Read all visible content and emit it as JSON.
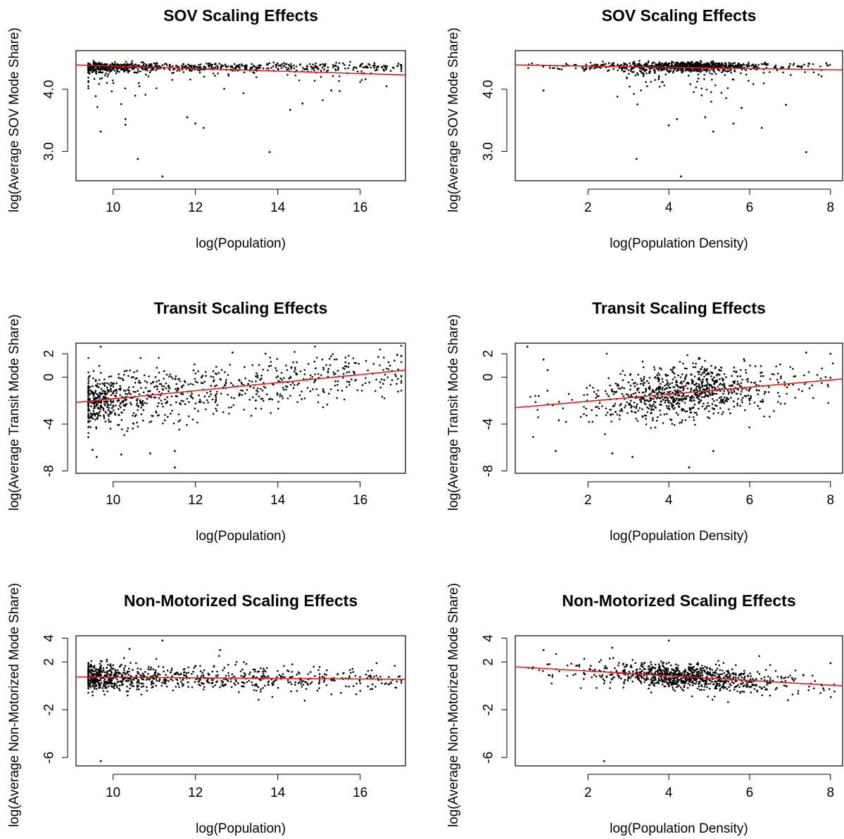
{
  "figure": {
    "point_color": "#000000",
    "fit_line_color": "#e41a1c"
  },
  "chart_data": [
    {
      "type": "scatter",
      "title": "SOV Scaling Effects",
      "xlabel": "log(Population)",
      "ylabel": "log(Average SOV Mode Share)",
      "xlim": [
        9.1,
        17.1
      ],
      "ylim": [
        2.53,
        4.62
      ],
      "xticks": [
        10,
        12,
        14,
        16
      ],
      "yticks": [
        3.0,
        4.0
      ],
      "ytick_labels": [
        "3.0",
        "4.0"
      ],
      "grid": false,
      "fit_line": {
        "x": [
          9.1,
          17.1
        ],
        "y": [
          4.39,
          4.23
        ]
      },
      "points": {
        "count": 900,
        "x_range": [
          9.4,
          17.0
        ],
        "center_y": 4.36,
        "spread_y": 0.09
      },
      "outliers": [
        [
          9.7,
          3.32
        ],
        [
          10.3,
          3.43
        ],
        [
          10.3,
          3.52
        ],
        [
          10.6,
          2.88
        ],
        [
          11.2,
          2.6
        ],
        [
          11.8,
          3.55
        ],
        [
          12.2,
          3.38
        ],
        [
          12.0,
          3.45
        ],
        [
          13.8,
          2.99
        ],
        [
          14.3,
          3.67
        ],
        [
          14.6,
          3.77
        ],
        [
          15.5,
          3.97
        ],
        [
          15.3,
          3.98
        ]
      ]
    },
    {
      "type": "scatter",
      "title": "SOV Scaling Effects",
      "xlabel": "log(Population Density)",
      "ylabel": "log(Average SOV Mode Share)",
      "xlim": [
        0.2,
        8.3
      ],
      "ylim": [
        2.53,
        4.62
      ],
      "xticks": [
        2,
        4,
        6,
        8
      ],
      "yticks": [
        3.0,
        4.0
      ],
      "ytick_labels": [
        "3.0",
        "4.0"
      ],
      "grid": false,
      "fit_line": {
        "x": [
          0.2,
          8.3
        ],
        "y": [
          4.39,
          4.31
        ]
      },
      "points": {
        "count": 900,
        "x_range": [
          0.5,
          8.1
        ],
        "center_y": 4.37,
        "spread_y": 0.08
      },
      "outliers": [
        [
          0.9,
          3.98
        ],
        [
          3.2,
          2.88
        ],
        [
          4.0,
          3.42
        ],
        [
          4.2,
          3.52
        ],
        [
          4.3,
          2.6
        ],
        [
          5.1,
          3.32
        ],
        [
          5.6,
          3.45
        ],
        [
          6.3,
          3.38
        ],
        [
          7.4,
          2.99
        ],
        [
          4.9,
          3.55
        ],
        [
          5.8,
          3.7
        ],
        [
          6.9,
          3.75
        ]
      ]
    },
    {
      "type": "scatter",
      "title": "Transit Scaling Effects",
      "xlabel": "log(Population)",
      "ylabel": "log(Average Transit Mode Share)",
      "xlim": [
        9.1,
        17.1
      ],
      "ylim": [
        -8.2,
        2.9
      ],
      "xticks": [
        10,
        12,
        14,
        16
      ],
      "yticks": [
        -8,
        -4,
        0,
        2
      ],
      "ytick_labels": [
        "-8",
        "-4",
        "0",
        "2"
      ],
      "grid": false,
      "fit_line": {
        "x": [
          9.1,
          17.1
        ],
        "y": [
          -2.15,
          0.6
        ]
      },
      "points": {
        "count": 900,
        "x_range": [
          9.4,
          17.0
        ],
        "center_y": -1.3,
        "spread_y": 1.1
      },
      "outliers": [
        [
          9.5,
          -6.2
        ],
        [
          9.6,
          -6.8
        ],
        [
          10.2,
          -6.6
        ],
        [
          10.9,
          -6.5
        ],
        [
          11.5,
          -6.3
        ],
        [
          11.5,
          -7.7
        ],
        [
          9.7,
          2.6
        ],
        [
          12.9,
          2.1
        ],
        [
          16.9,
          1.9
        ],
        [
          13.7,
          2.0
        ]
      ]
    },
    {
      "type": "scatter",
      "title": "Transit Scaling Effects",
      "xlabel": "log(Population Density)",
      "ylabel": "log(Average Transit Mode Share)",
      "xlim": [
        0.2,
        8.3
      ],
      "ylim": [
        -8.2,
        2.9
      ],
      "xticks": [
        2,
        4,
        6,
        8
      ],
      "yticks": [
        -8,
        -4,
        0,
        2
      ],
      "ytick_labels": [
        "-8",
        "-4",
        "0",
        "2"
      ],
      "grid": false,
      "fit_line": {
        "x": [
          0.2,
          8.3
        ],
        "y": [
          -2.6,
          -0.15
        ]
      },
      "points": {
        "count": 900,
        "x_range": [
          0.5,
          8.1
        ],
        "center_y": -1.2,
        "spread_y": 1.1
      },
      "outliers": [
        [
          0.5,
          2.6
        ],
        [
          0.9,
          1.5
        ],
        [
          1.0,
          0.6
        ],
        [
          1.2,
          -6.3
        ],
        [
          4.5,
          -7.7
        ],
        [
          2.6,
          -6.5
        ],
        [
          3.1,
          -6.8
        ],
        [
          5.1,
          -6.3
        ],
        [
          7.4,
          2.1
        ],
        [
          8.0,
          2.0
        ]
      ]
    },
    {
      "type": "scatter",
      "title": "Non-Motorized Scaling Effects",
      "xlabel": "log(Population)",
      "ylabel": "log(Average Non-Motorized Mode Share)",
      "xlim": [
        9.1,
        17.1
      ],
      "ylim": [
        -6.7,
        4.2
      ],
      "xticks": [
        10,
        12,
        14,
        16
      ],
      "yticks": [
        -6,
        -2,
        2,
        4
      ],
      "ytick_labels": [
        "-6",
        "-2",
        "2",
        "4"
      ],
      "grid": false,
      "fit_line": {
        "x": [
          9.1,
          17.1
        ],
        "y": [
          0.75,
          0.55
        ]
      },
      "points": {
        "count": 900,
        "x_range": [
          9.4,
          17.0
        ],
        "center_y": 0.7,
        "spread_y": 0.55
      },
      "outliers": [
        [
          9.7,
          -6.3
        ],
        [
          10.4,
          3.1
        ],
        [
          11.2,
          3.8
        ],
        [
          12.6,
          3.0
        ],
        [
          16.4,
          1.9
        ],
        [
          9.5,
          -0.5
        ]
      ]
    },
    {
      "type": "scatter",
      "title": "Non-Motorized Scaling Effects",
      "xlabel": "log(Population Density)",
      "ylabel": "log(Average Non-Motorized Mode Share)",
      "xlim": [
        0.2,
        8.3
      ],
      "ylim": [
        -6.7,
        4.2
      ],
      "xticks": [
        2,
        4,
        6,
        8
      ],
      "yticks": [
        -6,
        -2,
        2,
        4
      ],
      "ytick_labels": [
        "-6",
        "-2",
        "2",
        "4"
      ],
      "grid": false,
      "fit_line": {
        "x": [
          0.2,
          8.3
        ],
        "y": [
          1.6,
          0.0
        ]
      },
      "points": {
        "count": 900,
        "x_range": [
          0.5,
          8.1
        ],
        "center_y": 0.8,
        "spread_y": 0.55
      },
      "outliers": [
        [
          2.4,
          -6.3
        ],
        [
          0.9,
          3.0
        ],
        [
          2.6,
          3.2
        ],
        [
          4.0,
          3.8
        ],
        [
          8.0,
          1.9
        ],
        [
          1.0,
          1.8
        ]
      ]
    }
  ]
}
